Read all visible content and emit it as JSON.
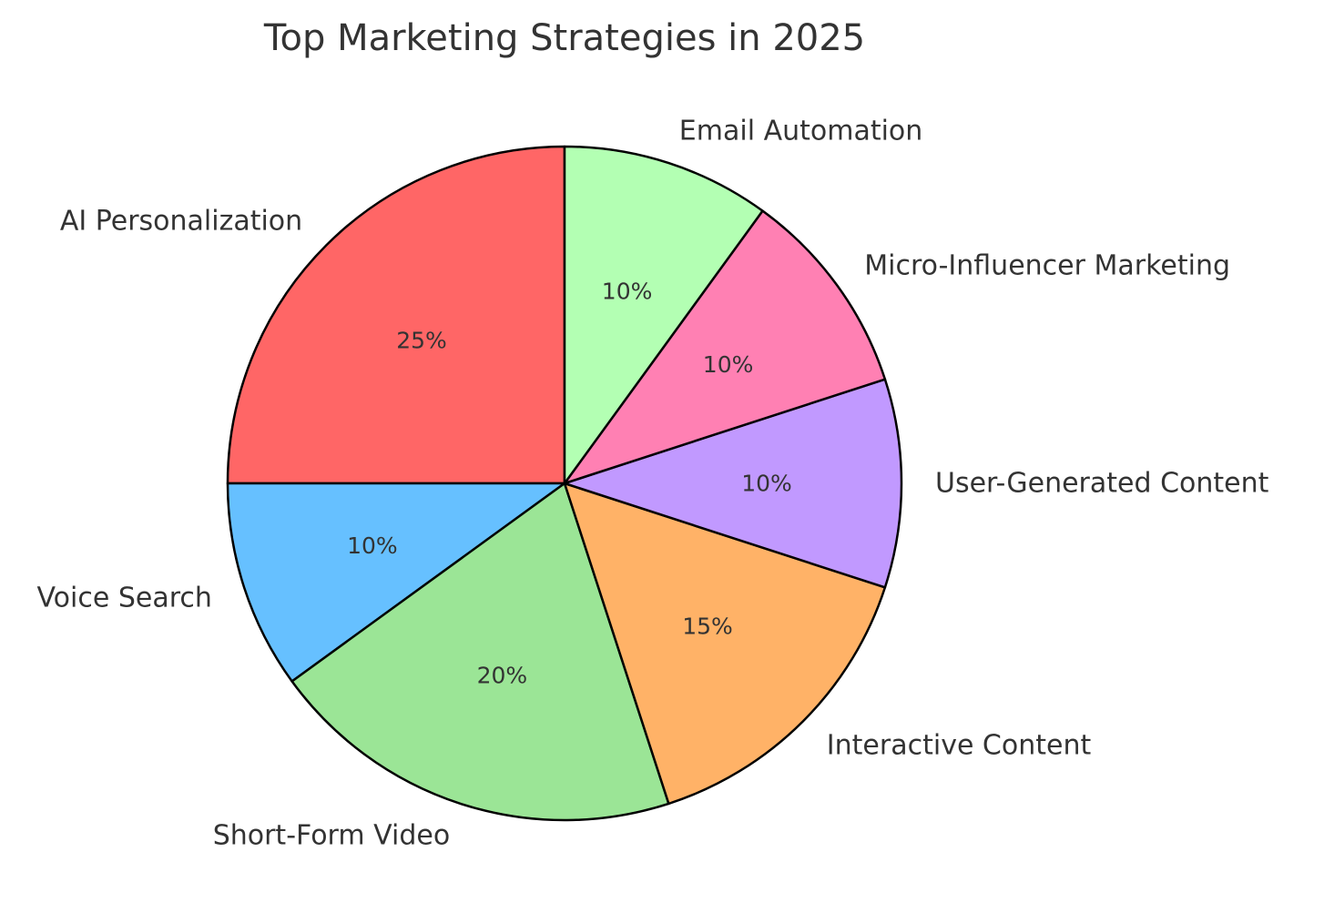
{
  "chart_data": {
    "type": "pie",
    "title": "Top Marketing Strategies in 2025",
    "start_angle_deg": 90,
    "direction": "counterclockwise",
    "slices": [
      {
        "label": "AI Personalization",
        "value": 25,
        "pct_label": "25%",
        "color": "#FF6666"
      },
      {
        "label": "Voice Search",
        "value": 10,
        "pct_label": "10%",
        "color": "#66C0FF"
      },
      {
        "label": "Short-Form Video",
        "value": 20,
        "pct_label": "20%",
        "color": "#9BE596"
      },
      {
        "label": "Interactive Content",
        "value": 15,
        "pct_label": "15%",
        "color": "#FFB267"
      },
      {
        "label": "User-Generated Content",
        "value": 10,
        "pct_label": "10%",
        "color": "#C199FF"
      },
      {
        "label": "Micro-Influencer Marketing",
        "value": 10,
        "pct_label": "10%",
        "color": "#FF80B3"
      },
      {
        "label": "Email Automation",
        "value": 10,
        "pct_label": "10%",
        "color": "#B3FFB3"
      }
    ]
  }
}
